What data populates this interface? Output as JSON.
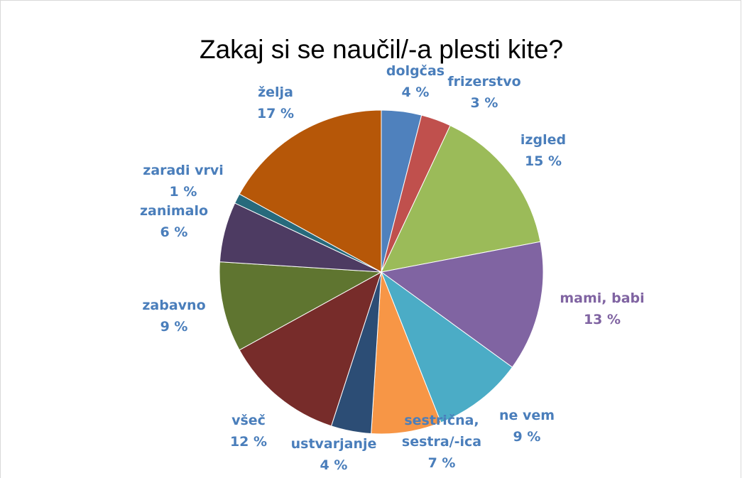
{
  "chart_data": {
    "type": "pie",
    "title": "Zakaj si se naučil/-a plesti kite?",
    "categories": [
      "dolgčas",
      "frizerstvo",
      "izgled",
      "mami, babi",
      "ne vem",
      "sestrična, sestra/-ica",
      "ustvarjanje",
      "všeč",
      "zabavno",
      "zanimalo",
      "zaradi vrvi",
      "želja"
    ],
    "values": [
      4,
      3,
      15,
      13,
      9,
      7,
      4,
      12,
      9,
      6,
      1,
      17
    ],
    "value_labels": [
      "4 %",
      "3 %",
      "15 %",
      "13 %",
      "9 %",
      "7 %",
      "4 %",
      "12 %",
      "9 %",
      "6 %",
      "1 %",
      "17 %"
    ],
    "colors": [
      "#4f81bd",
      "#c0504d",
      "#9bbb59",
      "#8064a2",
      "#4bacc6",
      "#f79646",
      "#2c4d75",
      "#772c2a",
      "#5f7530",
      "#4d3b62",
      "#276a7c",
      "#b65708"
    ],
    "label_colors": [
      "#4a7ebb",
      "#4a7ebb",
      "#4a7ebb",
      "#8064a2",
      "#4a7ebb",
      "#4a7ebb",
      "#4a7ebb",
      "#4a7ebb",
      "#4a7ebb",
      "#4a7ebb",
      "#4a7ebb",
      "#4a7ebb"
    ]
  }
}
